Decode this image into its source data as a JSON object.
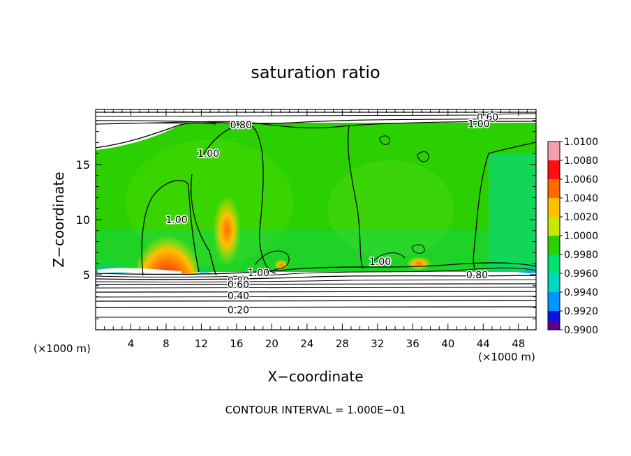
{
  "chart_data": {
    "type": "heatmap",
    "title": "saturation ratio",
    "xlabel": "X−coordinate",
    "ylabel": "Z−coordinate",
    "x_unit_note": "(×1000 m)",
    "z_unit_note": "(×1000 m)",
    "xlim": [
      0,
      50
    ],
    "ylim": [
      0,
      20
    ],
    "x_ticks": [
      4,
      8,
      12,
      16,
      20,
      24,
      28,
      32,
      36,
      40,
      44,
      48
    ],
    "y_ticks": [
      5,
      10,
      15
    ],
    "footer": "CONTOUR INTERVAL = 1.000E−01",
    "colorbar": {
      "levels": [
        "1.0100",
        "1.0080",
        "1.0060",
        "1.0040",
        "1.0020",
        "1.0000",
        "0.9980",
        "0.9960",
        "0.9940",
        "0.9920",
        "0.9900"
      ],
      "colors": [
        "#f4a0a8",
        "#ff1010",
        "#ff6a00",
        "#ffc000",
        "#c8e800",
        "#2ad000",
        "#00e070",
        "#00d8c0",
        "#0096ff",
        "#1010e0",
        "#5a0090"
      ]
    },
    "contour_labels": [
      {
        "text": "0.60",
        "x": 44.5,
        "y": 19.3
      },
      {
        "text": "1.00",
        "x": 43.5,
        "y": 18.7
      },
      {
        "text": "0.80",
        "x": 16.5,
        "y": 18.6
      },
      {
        "text": "1.00",
        "x": 12.8,
        "y": 16.0
      },
      {
        "text": "1.00",
        "x": 9.2,
        "y": 10.0
      },
      {
        "text": "1.00",
        "x": 32.3,
        "y": 6.2
      },
      {
        "text": "1.00",
        "x": 18.5,
        "y": 5.2
      },
      {
        "text": "0.80",
        "x": 43.3,
        "y": 5.0
      },
      {
        "text": "0.80",
        "x": 16.2,
        "y": 4.5
      },
      {
        "text": "0.60",
        "x": 16.2,
        "y": 4.1
      },
      {
        "text": "0.40",
        "x": 16.2,
        "y": 3.1
      },
      {
        "text": "0.20",
        "x": 16.2,
        "y": 1.8
      }
    ]
  }
}
